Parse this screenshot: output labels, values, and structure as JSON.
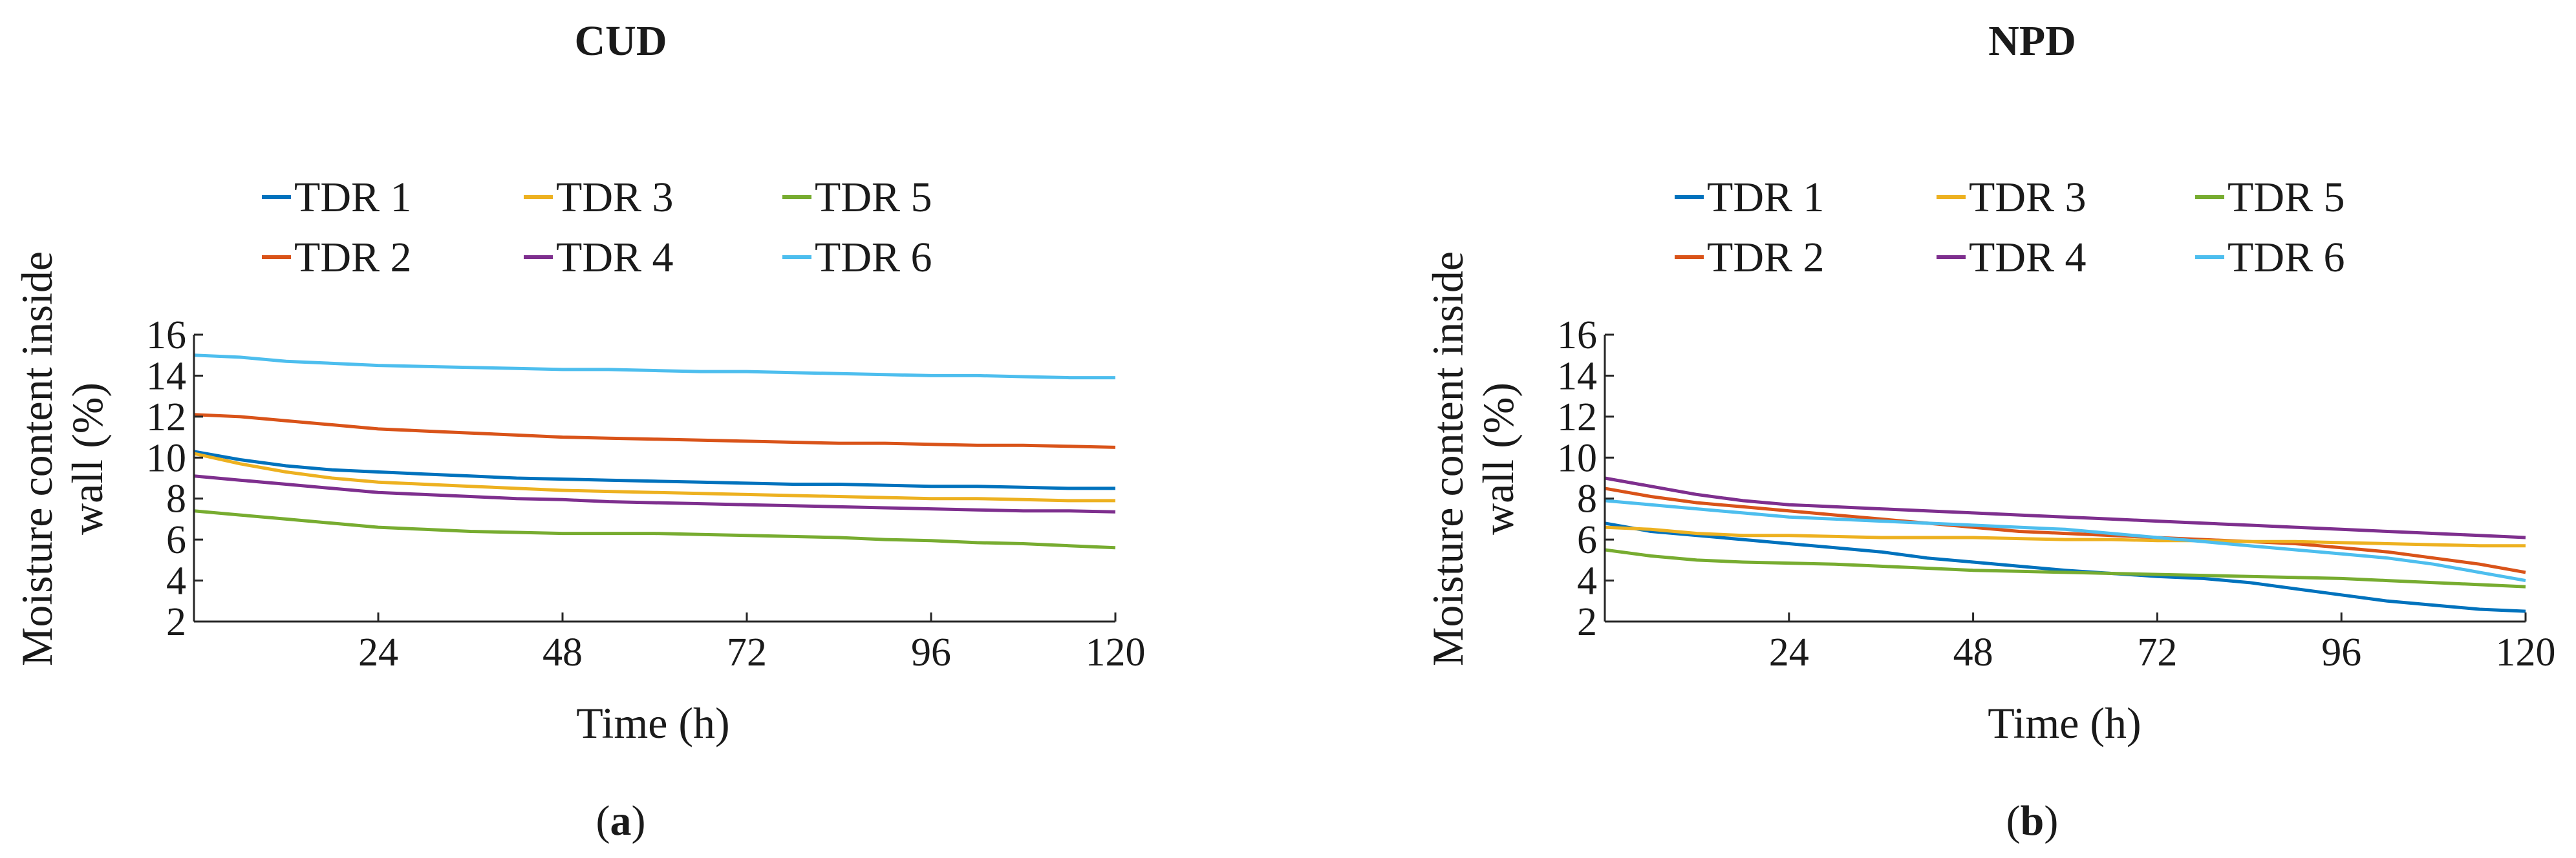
{
  "chart_data": [
    {
      "type": "line",
      "title": "CUD",
      "panel_label": "(a)",
      "xlabel": "Time (h)",
      "ylabel_line1": "Moisture content inside",
      "ylabel_line2": "wall (%)",
      "xlim": [
        0,
        120
      ],
      "ylim": [
        2,
        16
      ],
      "xticks": [
        24,
        48,
        72,
        96,
        120
      ],
      "yticks": [
        2,
        4,
        6,
        8,
        10,
        12,
        14,
        16
      ],
      "x": [
        0,
        6,
        12,
        18,
        24,
        30,
        36,
        42,
        48,
        54,
        60,
        66,
        72,
        78,
        84,
        90,
        96,
        102,
        108,
        114,
        120
      ],
      "series": [
        {
          "name": "TDR 1",
          "color": "#0072BD",
          "values": [
            10.3,
            9.9,
            9.6,
            9.4,
            9.3,
            9.2,
            9.1,
            9.0,
            8.95,
            8.9,
            8.85,
            8.8,
            8.75,
            8.7,
            8.7,
            8.65,
            8.6,
            8.6,
            8.55,
            8.5,
            8.5
          ]
        },
        {
          "name": "TDR 2",
          "color": "#D95319",
          "values": [
            12.1,
            12.0,
            11.8,
            11.6,
            11.4,
            11.3,
            11.2,
            11.1,
            11.0,
            10.95,
            10.9,
            10.85,
            10.8,
            10.75,
            10.7,
            10.7,
            10.65,
            10.6,
            10.6,
            10.55,
            10.5
          ]
        },
        {
          "name": "TDR 3",
          "color": "#EDB120",
          "values": [
            10.2,
            9.7,
            9.3,
            9.0,
            8.8,
            8.7,
            8.6,
            8.5,
            8.4,
            8.35,
            8.3,
            8.25,
            8.2,
            8.15,
            8.1,
            8.05,
            8.0,
            8.0,
            7.95,
            7.9,
            7.9
          ]
        },
        {
          "name": "TDR 4",
          "color": "#7E2F8E",
          "values": [
            9.1,
            8.9,
            8.7,
            8.5,
            8.3,
            8.2,
            8.1,
            8.0,
            7.95,
            7.85,
            7.8,
            7.75,
            7.7,
            7.65,
            7.6,
            7.55,
            7.5,
            7.45,
            7.4,
            7.4,
            7.35
          ]
        },
        {
          "name": "TDR 5",
          "color": "#77AC30",
          "values": [
            7.4,
            7.2,
            7.0,
            6.8,
            6.6,
            6.5,
            6.4,
            6.35,
            6.3,
            6.3,
            6.3,
            6.25,
            6.2,
            6.15,
            6.1,
            6.0,
            5.95,
            5.85,
            5.8,
            5.7,
            5.6
          ]
        },
        {
          "name": "TDR 6",
          "color": "#4DBEEE",
          "values": [
            15.0,
            14.9,
            14.7,
            14.6,
            14.5,
            14.45,
            14.4,
            14.35,
            14.3,
            14.3,
            14.25,
            14.2,
            14.2,
            14.15,
            14.1,
            14.05,
            14.0,
            14.0,
            13.95,
            13.9,
            13.9
          ]
        }
      ]
    },
    {
      "type": "line",
      "title": "NPD",
      "panel_label": "(b)",
      "xlabel": "Time (h)",
      "ylabel_line1": "Moisture content inside",
      "ylabel_line2": "wall (%)",
      "xlim": [
        0,
        120
      ],
      "ylim": [
        2,
        16
      ],
      "xticks": [
        24,
        48,
        72,
        96,
        120
      ],
      "yticks": [
        2,
        4,
        6,
        8,
        10,
        12,
        14,
        16
      ],
      "x": [
        0,
        6,
        12,
        18,
        24,
        30,
        36,
        42,
        48,
        54,
        60,
        66,
        72,
        78,
        84,
        90,
        96,
        102,
        108,
        114,
        120
      ],
      "series": [
        {
          "name": "TDR 1",
          "color": "#0072BD",
          "values": [
            6.8,
            6.4,
            6.2,
            6.0,
            5.8,
            5.6,
            5.4,
            5.1,
            4.9,
            4.7,
            4.5,
            4.35,
            4.2,
            4.1,
            3.9,
            3.6,
            3.3,
            3.0,
            2.8,
            2.6,
            2.5
          ]
        },
        {
          "name": "TDR 2",
          "color": "#D95319",
          "values": [
            8.5,
            8.1,
            7.8,
            7.6,
            7.4,
            7.2,
            7.0,
            6.8,
            6.6,
            6.4,
            6.3,
            6.2,
            6.1,
            6.0,
            5.9,
            5.8,
            5.6,
            5.4,
            5.1,
            4.8,
            4.4
          ]
        },
        {
          "name": "TDR 3",
          "color": "#EDB120",
          "values": [
            6.6,
            6.5,
            6.3,
            6.2,
            6.2,
            6.15,
            6.1,
            6.1,
            6.1,
            6.05,
            6.0,
            6.0,
            5.95,
            5.95,
            5.9,
            5.9,
            5.85,
            5.8,
            5.75,
            5.7,
            5.7
          ]
        },
        {
          "name": "TDR 4",
          "color": "#7E2F8E",
          "values": [
            9.0,
            8.6,
            8.2,
            7.9,
            7.7,
            7.6,
            7.5,
            7.4,
            7.3,
            7.2,
            7.1,
            7.0,
            6.9,
            6.8,
            6.7,
            6.6,
            6.5,
            6.4,
            6.3,
            6.2,
            6.1
          ]
        },
        {
          "name": "TDR 5",
          "color": "#77AC30",
          "values": [
            5.5,
            5.2,
            5.0,
            4.9,
            4.85,
            4.8,
            4.7,
            4.6,
            4.5,
            4.45,
            4.4,
            4.35,
            4.3,
            4.25,
            4.2,
            4.15,
            4.1,
            4.0,
            3.9,
            3.8,
            3.7
          ]
        },
        {
          "name": "TDR 6",
          "color": "#4DBEEE",
          "values": [
            7.9,
            7.7,
            7.5,
            7.3,
            7.1,
            7.0,
            6.9,
            6.8,
            6.7,
            6.6,
            6.5,
            6.3,
            6.1,
            5.9,
            5.7,
            5.5,
            5.3,
            5.1,
            4.8,
            4.4,
            4.0
          ]
        }
      ]
    }
  ]
}
